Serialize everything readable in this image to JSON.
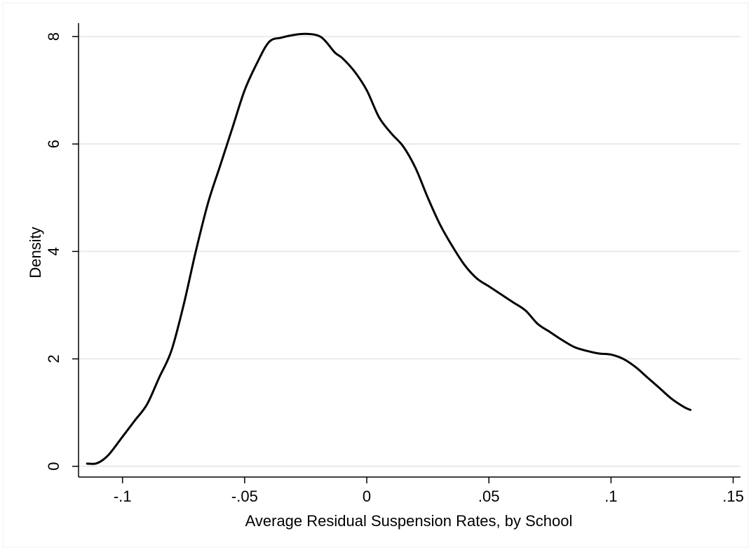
{
  "chart_data": {
    "type": "line",
    "title": "",
    "xlabel": "Average Residual Suspension Rates, by School",
    "ylabel": "Density",
    "xlim": [
      -0.118,
      0.153
    ],
    "ylim": [
      -0.2,
      8.25
    ],
    "grid": "horizontal",
    "x_ticks": [
      {
        "value": -0.1,
        "label": "-.1"
      },
      {
        "value": -0.05,
        "label": "-.05"
      },
      {
        "value": 0,
        "label": "0"
      },
      {
        "value": 0.05,
        "label": ".05"
      },
      {
        "value": 0.1,
        "label": ".1"
      },
      {
        "value": 0.15,
        "label": ".15"
      }
    ],
    "y_ticks": [
      {
        "value": 0,
        "label": "0"
      },
      {
        "value": 2,
        "label": "2"
      },
      {
        "value": 4,
        "label": "4"
      },
      {
        "value": 6,
        "label": "6"
      },
      {
        "value": 8,
        "label": "8"
      }
    ],
    "colors": {
      "line": "#000000",
      "grid": "#e4ecee",
      "axis": "#000000",
      "background": "#ffffff"
    },
    "series": [
      {
        "x": [
          -0.1145,
          -0.111,
          -0.108,
          -0.105,
          -0.1,
          -0.095,
          -0.09,
          -0.085,
          -0.08,
          -0.075,
          -0.07,
          -0.065,
          -0.06,
          -0.055,
          -0.05,
          -0.045,
          -0.04,
          -0.035,
          -0.03,
          -0.025,
          -0.02,
          -0.017,
          -0.013,
          -0.01,
          -0.005,
          0,
          0.005,
          0.01,
          0.015,
          0.02,
          0.025,
          0.03,
          0.035,
          0.04,
          0.045,
          0.05,
          0.055,
          0.06,
          0.065,
          0.07,
          0.075,
          0.08,
          0.085,
          0.09,
          0.095,
          0.1,
          0.105,
          0.11,
          0.115,
          0.12,
          0.125,
          0.13,
          0.1325
        ],
        "y": [
          0.05,
          0.05,
          0.12,
          0.25,
          0.55,
          0.85,
          1.15,
          1.65,
          2.15,
          3.0,
          4.0,
          4.9,
          5.6,
          6.3,
          7.0,
          7.5,
          7.9,
          7.98,
          8.03,
          8.05,
          8.02,
          7.92,
          7.7,
          7.6,
          7.35,
          7.0,
          6.5,
          6.2,
          5.95,
          5.55,
          5.0,
          4.5,
          4.1,
          3.75,
          3.5,
          3.35,
          3.2,
          3.05,
          2.9,
          2.65,
          2.5,
          2.35,
          2.22,
          2.15,
          2.1,
          2.08,
          2.0,
          1.85,
          1.65,
          1.45,
          1.25,
          1.1,
          1.05
        ]
      }
    ]
  }
}
